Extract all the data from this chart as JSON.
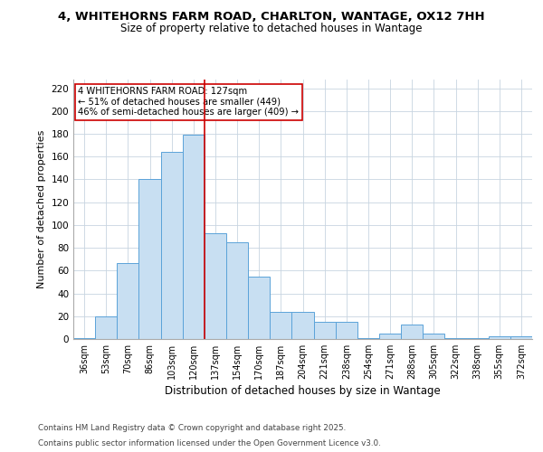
{
  "title_line1": "4, WHITEHORNS FARM ROAD, CHARLTON, WANTAGE, OX12 7HH",
  "title_line2": "Size of property relative to detached houses in Wantage",
  "xlabel": "Distribution of detached houses by size in Wantage",
  "ylabel": "Number of detached properties",
  "categories": [
    "36sqm",
    "53sqm",
    "70sqm",
    "86sqm",
    "103sqm",
    "120sqm",
    "137sqm",
    "154sqm",
    "170sqm",
    "187sqm",
    "204sqm",
    "221sqm",
    "238sqm",
    "254sqm",
    "271sqm",
    "288sqm",
    "305sqm",
    "322sqm",
    "338sqm",
    "355sqm",
    "372sqm"
  ],
  "values": [
    1,
    20,
    67,
    140,
    164,
    179,
    93,
    85,
    55,
    24,
    24,
    15,
    15,
    1,
    5,
    13,
    5,
    1,
    1,
    2,
    2
  ],
  "bar_color": "#c8dff2",
  "bar_edgecolor": "#5ba3d9",
  "bar_linewidth": 0.7,
  "vline_index": 5.5,
  "vline_color": "#cc0000",
  "annotation_text": "4 WHITEHORNS FARM ROAD: 127sqm\n← 51% of detached houses are smaller (449)\n46% of semi-detached houses are larger (409) →",
  "annotation_box_edgecolor": "#cc0000",
  "annotation_box_facecolor": "white",
  "ylim": [
    0,
    228
  ],
  "yticks": [
    0,
    20,
    40,
    60,
    80,
    100,
    120,
    140,
    160,
    180,
    200,
    220
  ],
  "footnote_line1": "Contains HM Land Registry data © Crown copyright and database right 2025.",
  "footnote_line2": "Contains public sector information licensed under the Open Government Licence v3.0.",
  "background_color": "#ffffff",
  "grid_color": "#c8d4e0"
}
